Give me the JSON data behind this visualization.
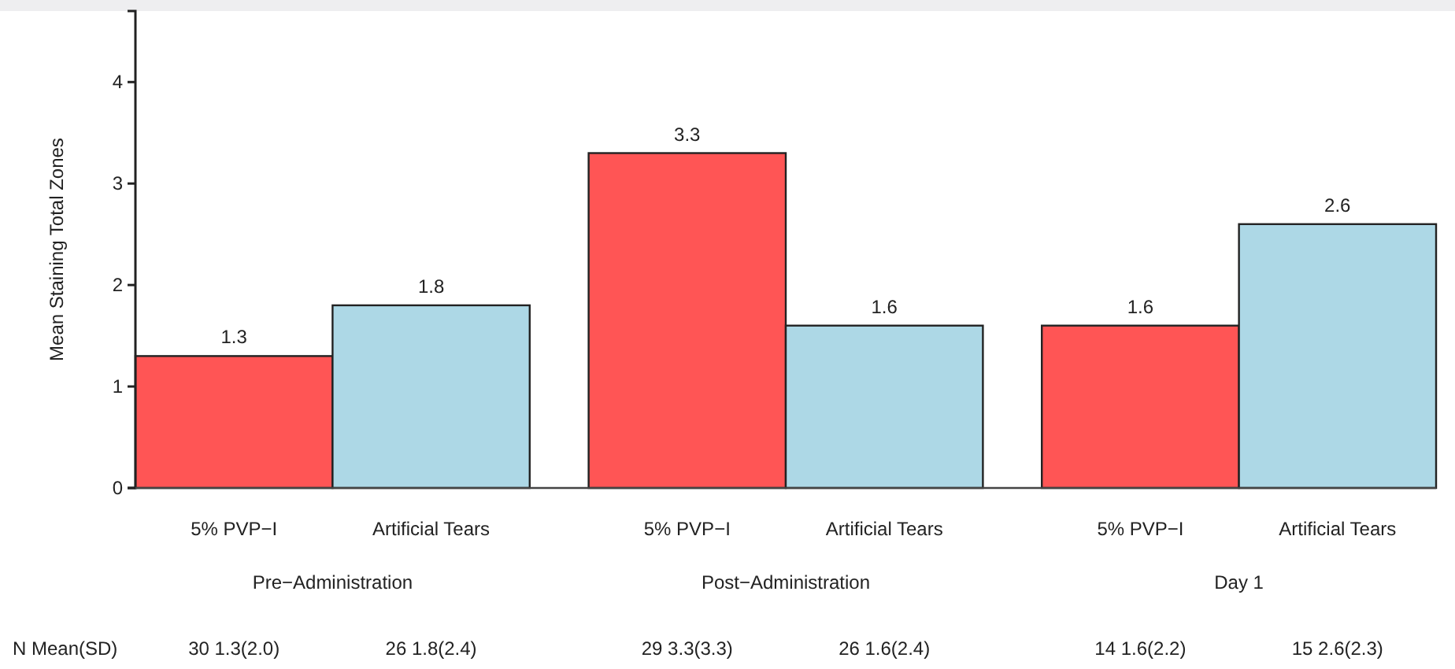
{
  "chart_data": {
    "type": "bar",
    "ylabel": "Mean Staining Total Zones",
    "categories": [
      "Pre−Administration",
      "Post−Administration",
      "Day 1"
    ],
    "series": [
      {
        "name": "5% PVP−I",
        "color": "#ff5555",
        "values": [
          1.3,
          3.3,
          1.6
        ]
      },
      {
        "name": "Artificial Tears",
        "color": "#add8e6",
        "values": [
          1.8,
          1.6,
          2.6
        ]
      }
    ],
    "ylim": [
      0,
      4.7
    ],
    "yticks": [
      0,
      1,
      2,
      3,
      4
    ],
    "data_labels": true,
    "grid": false,
    "annotations": [
      "N Mean(SD)",
      "30 1.3(2.0)",
      "26 1.8(2.4)",
      "29 3.3(3.3)",
      "26 1.6(2.4)",
      "14 1.6(2.2)",
      "15 2.6(2.3)"
    ]
  }
}
